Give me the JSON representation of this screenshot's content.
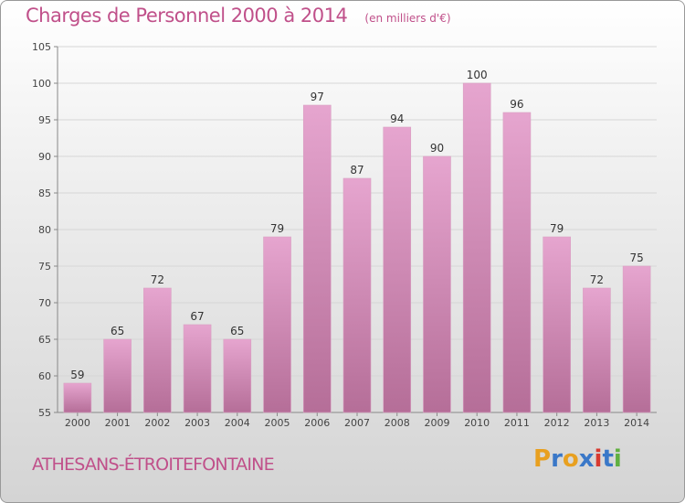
{
  "header": {
    "title": "Charges de Personnel 2000 à 2014",
    "unit": "(en milliers d'€)"
  },
  "footer": {
    "commune": "ATHESANS-ÉTROITEFONTAINE",
    "brand_letters": [
      "P",
      "r",
      "o",
      "x",
      "i",
      "t",
      "i"
    ],
    "brand_colors": [
      "#e8a020",
      "#3a78c8",
      "#e8a020",
      "#3a78c8",
      "#d83a30",
      "#3a78c8",
      "#60b040"
    ]
  },
  "colors": {
    "bar_top": "#e6a5cf",
    "bar_bottom": "#b56e98",
    "accent": "#c0508a"
  },
  "chart_data": {
    "type": "bar",
    "title": "Charges de Personnel 2000 à 2014",
    "xlabel": "",
    "ylabel": "",
    "categories": [
      "2000",
      "2001",
      "2002",
      "2003",
      "2004",
      "2005",
      "2006",
      "2007",
      "2008",
      "2009",
      "2010",
      "2011",
      "2012",
      "2013",
      "2014"
    ],
    "values": [
      59,
      65,
      72,
      67,
      65,
      79,
      97,
      87,
      94,
      90,
      100,
      96,
      79,
      72,
      75
    ],
    "ylim": [
      55,
      105
    ],
    "yticks": [
      55,
      60,
      65,
      70,
      75,
      80,
      85,
      90,
      95,
      100,
      105
    ],
    "grid": true
  }
}
